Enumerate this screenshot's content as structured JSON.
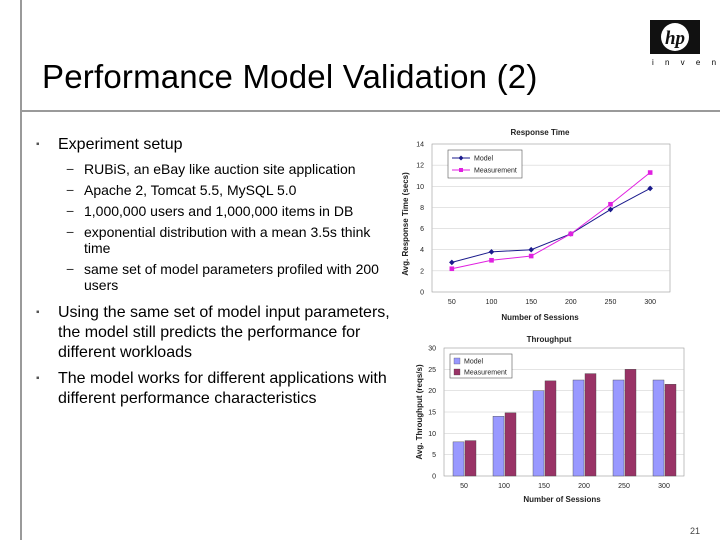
{
  "slide": {
    "title": "Performance Model Validation (2)",
    "logo_text": "hp",
    "logo_tagline": "i n v e n t",
    "page_number": "21"
  },
  "bullets": {
    "b1": "Experiment setup",
    "sub": [
      "RUBiS, an eBay like auction site application",
      "Apache 2, Tomcat 5.5, MySQL 5.0",
      "1,000,000 users and 1,000,000 items in DB",
      "exponential distribution with a mean 3.5s think time",
      "same set of model parameters profiled with 200 users"
    ],
    "b2": "Using the same set of model input parameters, the model still predicts the performance for different workloads",
    "b3": "The model works for different applications with different performance characteristics"
  },
  "chart_data": [
    {
      "type": "line",
      "title": "Response Time",
      "xlabel": "Number of Sessions",
      "ylabel": "Avg. Response Time (secs)",
      "categories": [
        "50",
        "100",
        "150",
        "200",
        "250",
        "300"
      ],
      "ylim": [
        0,
        14
      ],
      "yticks": [
        "0",
        "2",
        "4",
        "6",
        "8",
        "10",
        "12",
        "14"
      ],
      "legend_position": "top-left",
      "series": [
        {
          "name": "Model",
          "color": "#1a1a8c",
          "marker": "diamond",
          "values": [
            2.8,
            3.8,
            4.0,
            5.5,
            7.8,
            9.8
          ]
        },
        {
          "name": "Measurement",
          "color": "#e020e0",
          "marker": "square",
          "values": [
            2.2,
            3.0,
            3.4,
            5.5,
            8.3,
            11.3
          ]
        }
      ]
    },
    {
      "type": "bar",
      "title": "Throughput",
      "xlabel": "Number of Sessions",
      "ylabel": "Avg. Throughput (reqs/s)",
      "categories": [
        "50",
        "100",
        "150",
        "200",
        "250",
        "300"
      ],
      "ylim": [
        0,
        30
      ],
      "yticks": [
        "0",
        "5",
        "10",
        "15",
        "20",
        "25",
        "30"
      ],
      "legend_position": "top-left",
      "series": [
        {
          "name": "Model",
          "color": "#9999ff",
          "values": [
            8,
            14,
            20,
            22.5,
            22.5,
            22.5
          ]
        },
        {
          "name": "Measurement",
          "color": "#993366",
          "values": [
            8.3,
            14.8,
            22.3,
            24,
            25,
            21.5
          ]
        }
      ]
    }
  ]
}
